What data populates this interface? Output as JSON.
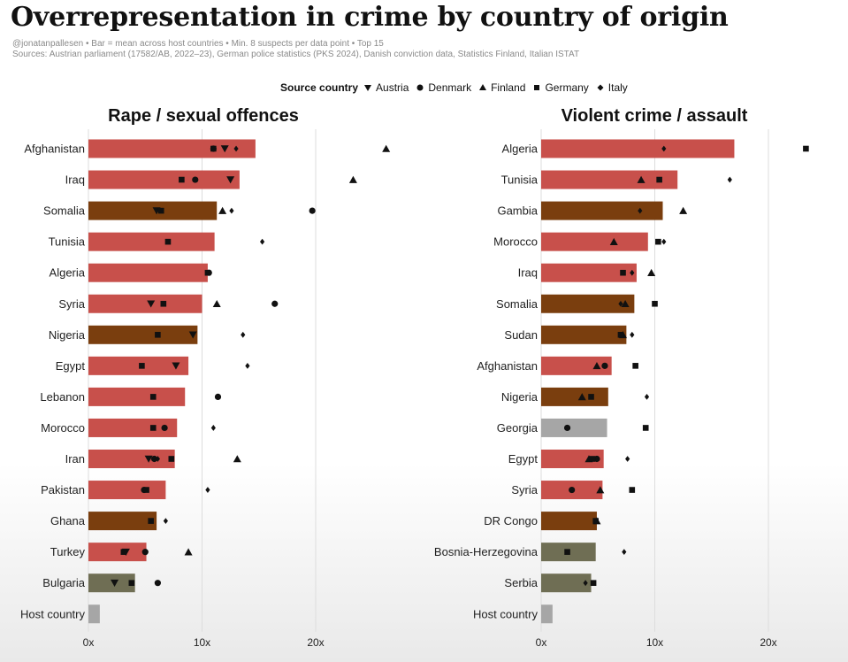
{
  "title": "Overrepresentation in crime by country of origin",
  "subtitle": "@jonatanpallesen • Bar = mean across host countries • Min. 8 suspects per data point • Top 15",
  "sources": "Sources: Austrian parliament (17582/AB, 2022–23), German police statistics (PKS 2024), Danish conviction data, Statistics Finland, Italian ISTAT",
  "legend": {
    "title": "Source country",
    "items": [
      {
        "name": "Austria",
        "marker": "triangle-down"
      },
      {
        "name": "Denmark",
        "marker": "circle"
      },
      {
        "name": "Finland",
        "marker": "triangle-up"
      },
      {
        "name": "Germany",
        "marker": "square"
      },
      {
        "name": "Italy",
        "marker": "diamond"
      }
    ]
  },
  "colors": {
    "MENA": "#c8504b",
    "Africa": "#7a3e0e",
    "Other": "#6f6e54",
    "Host": "#a6a6a6",
    "grid": "#dddddd"
  },
  "chart_data": [
    {
      "type": "bar",
      "title": "Rape / sexual offences",
      "xlim": [
        0,
        25
      ],
      "x_ticks": [
        "0x",
        "10x",
        "20x"
      ],
      "x_tick_values": [
        0,
        10,
        20
      ],
      "categories": [
        "Afghanistan",
        "Iraq",
        "Somalia",
        "Tunisia",
        "Algeria",
        "Syria",
        "Nigeria",
        "Egypt",
        "Lebanon",
        "Morocco",
        "Iran",
        "Pakistan",
        "Ghana",
        "Turkey",
        "Bulgaria",
        "Host country"
      ],
      "bar_values": [
        14.7,
        13.3,
        11.3,
        11.1,
        10.5,
        10.0,
        9.6,
        8.8,
        8.5,
        7.8,
        7.6,
        6.8,
        6.0,
        5.1,
        4.1,
        1.0
      ],
      "bar_groups": [
        "MENA",
        "MENA",
        "Africa",
        "MENA",
        "MENA",
        "MENA",
        "Africa",
        "MENA",
        "MENA",
        "MENA",
        "MENA",
        "MENA",
        "Africa",
        "MENA",
        "Other",
        "Host"
      ],
      "series": [
        {
          "name": "Austria",
          "values": [
            12.0,
            12.5,
            6.0,
            null,
            null,
            5.5,
            9.2,
            7.7,
            null,
            null,
            5.3,
            null,
            null,
            3.3,
            2.3,
            null
          ]
        },
        {
          "name": "Denmark",
          "values": [
            11.0,
            9.4,
            19.7,
            null,
            10.6,
            16.4,
            null,
            null,
            11.4,
            6.7,
            5.8,
            4.9,
            null,
            5.0,
            6.1,
            null
          ]
        },
        {
          "name": "Finland",
          "values": [
            26.2,
            23.3,
            11.8,
            null,
            null,
            11.3,
            null,
            null,
            null,
            null,
            13.1,
            null,
            null,
            8.8,
            null,
            null
          ]
        },
        {
          "name": "Germany",
          "values": [
            11.0,
            8.2,
            6.4,
            7.0,
            10.5,
            6.6,
            6.1,
            4.7,
            5.7,
            5.7,
            7.3,
            5.1,
            5.5,
            3.1,
            3.8,
            null
          ]
        },
        {
          "name": "Italy",
          "values": [
            13.0,
            null,
            12.6,
            15.3,
            null,
            null,
            13.6,
            14.0,
            null,
            11.0,
            6.1,
            10.5,
            6.8,
            null,
            null,
            null
          ]
        }
      ]
    },
    {
      "type": "bar",
      "title": "Violent crime / assault",
      "xlim": [
        0,
        25
      ],
      "x_ticks": [
        "0x",
        "10x",
        "20x"
      ],
      "x_tick_values": [
        0,
        10,
        20
      ],
      "categories": [
        "Algeria",
        "Tunisia",
        "Gambia",
        "Morocco",
        "Iraq",
        "Somalia",
        "Sudan",
        "Afghanistan",
        "Nigeria",
        "Georgia",
        "Egypt",
        "Syria",
        "DR Congo",
        "Bosnia-Herzegovina",
        "Serbia",
        "Host country"
      ],
      "bar_values": [
        17.0,
        12.0,
        10.7,
        9.4,
        8.4,
        8.2,
        7.5,
        6.2,
        5.9,
        5.8,
        5.5,
        5.4,
        4.9,
        4.8,
        4.4,
        1.0
      ],
      "bar_groups": [
        "MENA",
        "MENA",
        "Africa",
        "MENA",
        "MENA",
        "Africa",
        "Africa",
        "MENA",
        "Africa",
        "Host",
        "MENA",
        "MENA",
        "Africa",
        "Other",
        "Other",
        "Host"
      ],
      "series": [
        {
          "name": "Austria",
          "values": [
            null,
            null,
            null,
            null,
            null,
            null,
            null,
            null,
            null,
            null,
            null,
            null,
            null,
            null,
            null,
            null
          ]
        },
        {
          "name": "Denmark",
          "values": [
            null,
            null,
            null,
            null,
            null,
            null,
            null,
            5.6,
            null,
            2.3,
            4.9,
            2.7,
            null,
            null,
            null,
            null
          ]
        },
        {
          "name": "Finland",
          "values": [
            null,
            8.8,
            12.5,
            6.4,
            9.7,
            7.4,
            7.2,
            4.9,
            3.6,
            null,
            4.2,
            5.2,
            4.9,
            null,
            null,
            null
          ]
        },
        {
          "name": "Germany",
          "values": [
            23.3,
            10.4,
            null,
            10.3,
            7.2,
            10.0,
            7.0,
            8.3,
            4.4,
            9.2,
            4.5,
            8.0,
            4.8,
            2.3,
            4.6,
            null
          ]
        },
        {
          "name": "Italy",
          "values": [
            10.8,
            16.6,
            8.7,
            10.8,
            8.0,
            7.0,
            8.0,
            null,
            9.3,
            null,
            7.6,
            null,
            null,
            7.3,
            3.9,
            null
          ]
        }
      ]
    }
  ]
}
